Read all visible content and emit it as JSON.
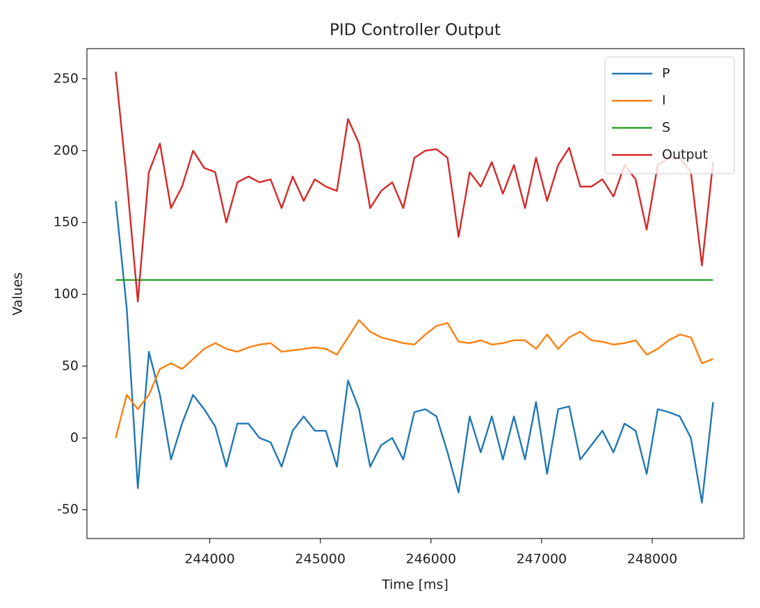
{
  "chart_data": {
    "type": "line",
    "title": "PID Controller Output",
    "x_label": "Time [ms]",
    "y_label": "Values",
    "x": [
      243150,
      243250,
      243350,
      243450,
      243550,
      243650,
      243750,
      243850,
      243950,
      244050,
      244150,
      244250,
      244350,
      244450,
      244550,
      244650,
      244750,
      244850,
      244950,
      245050,
      245150,
      245250,
      245350,
      245450,
      245550,
      245650,
      245750,
      245850,
      245950,
      246050,
      246150,
      246250,
      246350,
      246450,
      246550,
      246650,
      246750,
      246850,
      246950,
      247050,
      247150,
      247250,
      247350,
      247450,
      247550,
      247650,
      247750,
      247850,
      247950,
      248050,
      248150,
      248250,
      248350,
      248450,
      248550
    ],
    "series": [
      {
        "name": "P",
        "color": "#1f77b4",
        "values": [
          165,
          90,
          -35,
          60,
          30,
          -15,
          10,
          30,
          20,
          8,
          -20,
          10,
          10,
          0,
          -3,
          -20,
          5,
          15,
          5,
          5,
          -20,
          40,
          20,
          -20,
          -5,
          0,
          -15,
          18,
          20,
          15,
          -10,
          -38,
          15,
          -10,
          15,
          -15,
          15,
          -15,
          25,
          -25,
          20,
          22,
          -15,
          -5,
          5,
          -10,
          10,
          5,
          -25,
          20,
          18,
          15,
          0,
          -45,
          25
        ]
      },
      {
        "name": "I",
        "color": "#ff7f0e",
        "values": [
          0,
          30,
          20,
          30,
          48,
          52,
          48,
          55,
          62,
          66,
          62,
          60,
          63,
          65,
          66,
          60,
          61,
          62,
          63,
          62,
          58,
          70,
          82,
          74,
          70,
          68,
          66,
          65,
          72,
          78,
          80,
          67,
          66,
          68,
          65,
          66,
          68,
          68,
          62,
          72,
          62,
          70,
          74,
          68,
          67,
          65,
          66,
          68,
          58,
          62,
          68,
          72,
          70,
          52,
          55
        ]
      },
      {
        "name": "S",
        "color": "#2ca02c",
        "values": [
          110,
          110,
          110,
          110,
          110,
          110,
          110,
          110,
          110,
          110,
          110,
          110,
          110,
          110,
          110,
          110,
          110,
          110,
          110,
          110,
          110,
          110,
          110,
          110,
          110,
          110,
          110,
          110,
          110,
          110,
          110,
          110,
          110,
          110,
          110,
          110,
          110,
          110,
          110,
          110,
          110,
          110,
          110,
          110,
          110,
          110,
          110,
          110,
          110,
          110,
          110,
          110,
          110,
          110,
          110
        ]
      },
      {
        "name": "Output",
        "color": "#d62728",
        "values": [
          255,
          180,
          95,
          185,
          205,
          160,
          175,
          200,
          188,
          185,
          150,
          178,
          182,
          178,
          180,
          160,
          182,
          165,
          180,
          175,
          172,
          222,
          205,
          160,
          172,
          178,
          160,
          195,
          200,
          201,
          195,
          140,
          185,
          175,
          192,
          170,
          190,
          160,
          195,
          165,
          190,
          202,
          175,
          175,
          180,
          168,
          190,
          180,
          145,
          190,
          195,
          195,
          185,
          120,
          192
        ]
      }
    ],
    "xlim": [
      242890,
      248830
    ],
    "ylim": [
      -70,
      271
    ],
    "xticks": [
      244000,
      245000,
      246000,
      247000,
      248000
    ],
    "yticks": [
      -50,
      0,
      50,
      100,
      150,
      200,
      250
    ],
    "legend": "upper right"
  }
}
